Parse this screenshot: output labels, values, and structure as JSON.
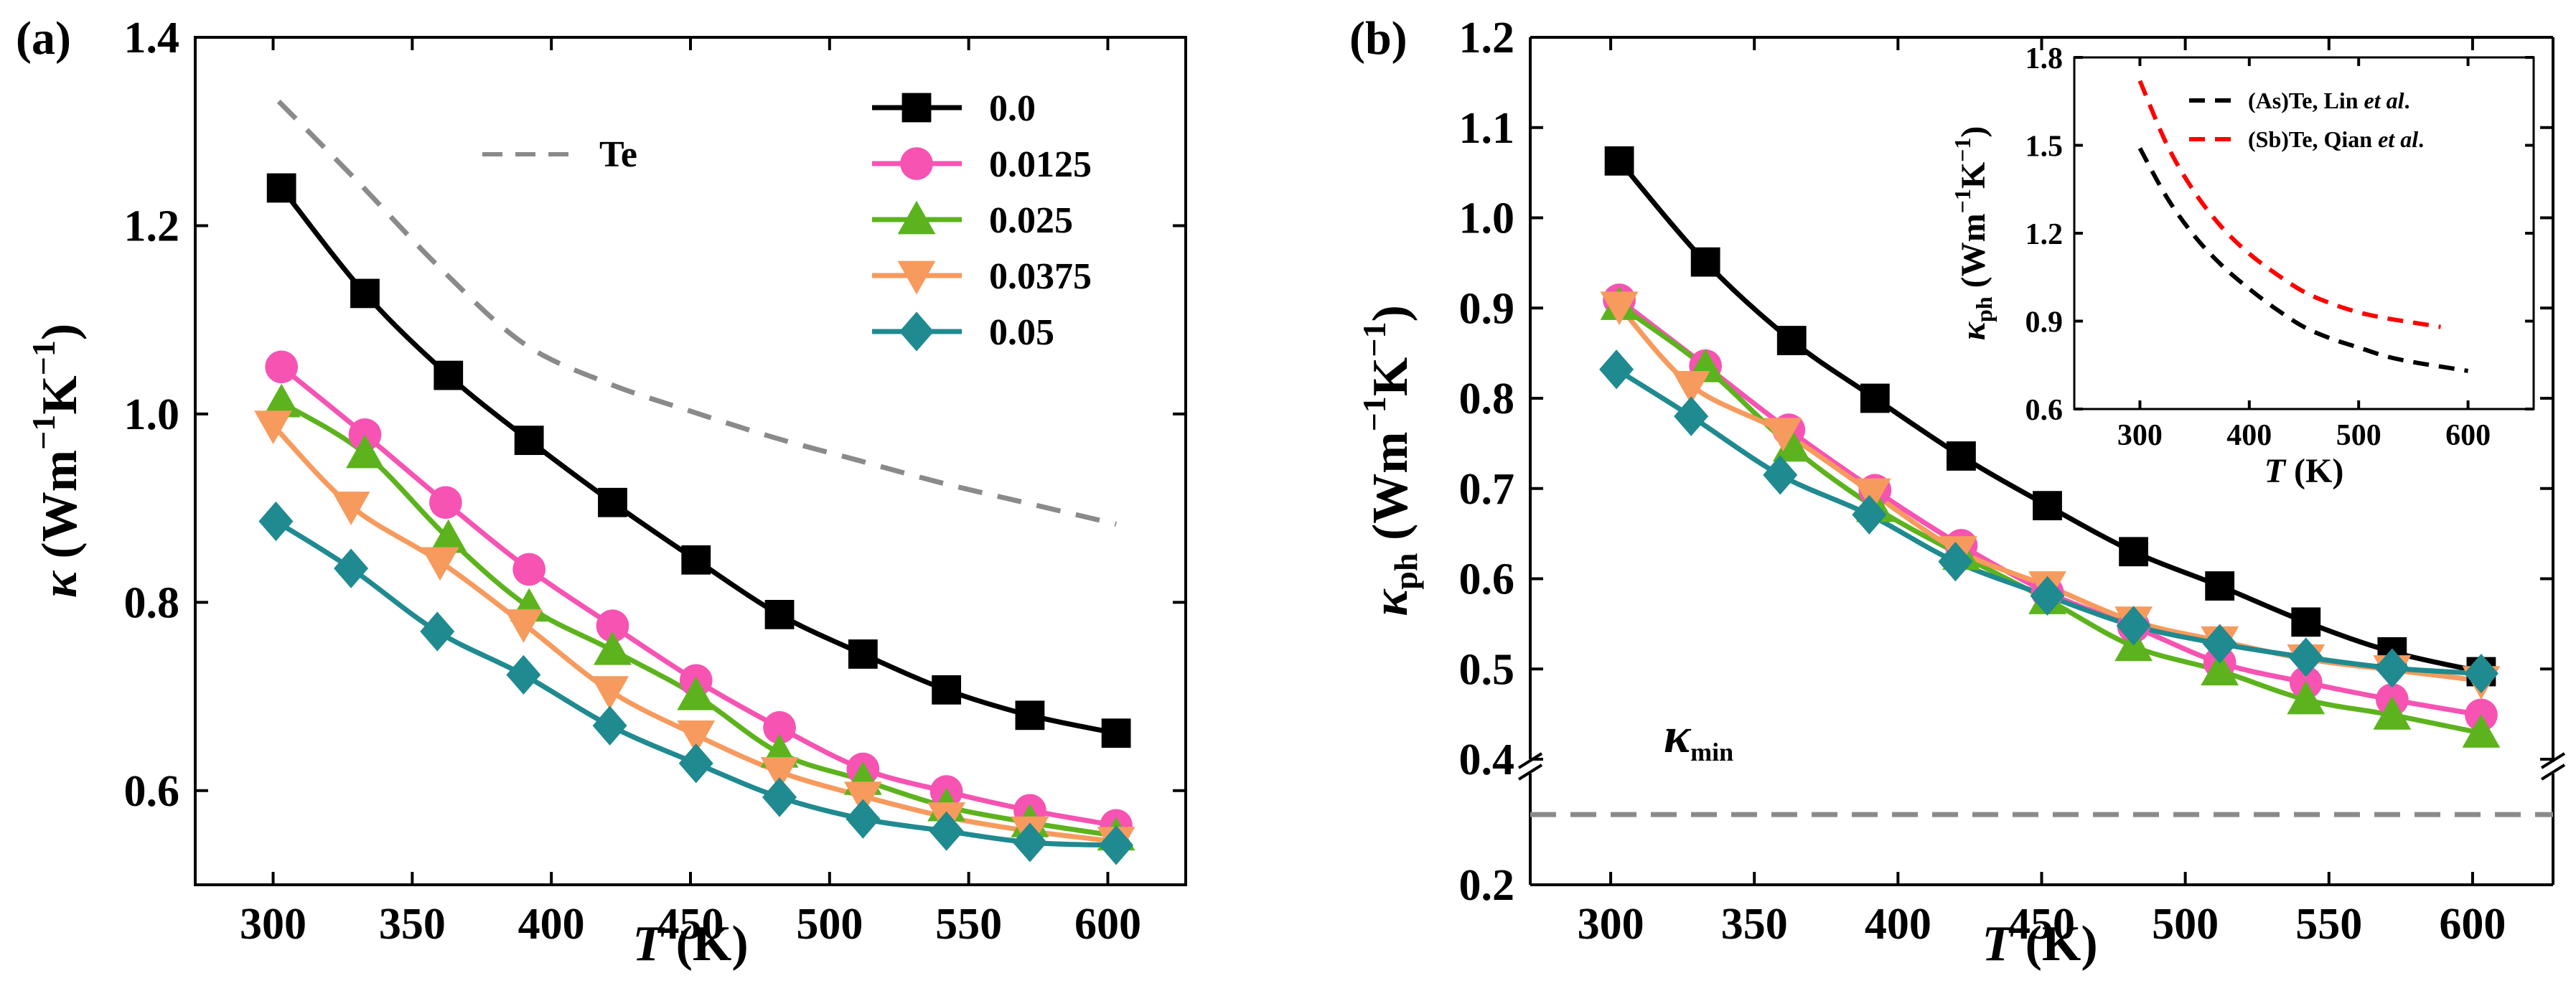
{
  "colors": {
    "s00": "#000000",
    "s0125": "#f653b3",
    "s025": "#5cb31d",
    "s0375": "#f79a5d",
    "s05": "#1f8a90",
    "te": "#8a8a8a",
    "as_te": "#000000",
    "sb_te": "#ff0000",
    "kmin": "#8a8a8a"
  },
  "chart_data": [
    {
      "panel": "(a)",
      "type": "line",
      "xlabel_main": "T",
      "xlabel_unit": " (K)",
      "ylabel_symbol": "κ",
      "ylabel_unit": " (Wm",
      "ylabel_exp1": "−1",
      "ylabel_mid": "K",
      "ylabel_exp2": "−1",
      "ylabel_close": ")",
      "xlim": [
        272,
        628
      ],
      "ylim": [
        0.5,
        1.4
      ],
      "xticks": [
        300,
        350,
        400,
        450,
        500,
        550,
        600
      ],
      "yticks": [
        0.6,
        0.8,
        1.0,
        1.2,
        1.4
      ],
      "ytick_labels": [
        "0.6",
        "0.8",
        "1.0",
        "1.2",
        "1.4"
      ],
      "legend_position": "top-right",
      "series": [
        {
          "name": "0.0",
          "marker": "square",
          "color_key": "s00",
          "x": [
            303,
            333,
            363,
            392,
            422,
            452,
            482,
            512,
            542,
            572,
            603
          ],
          "y": [
            1.24,
            1.128,
            1.041,
            0.972,
            0.906,
            0.845,
            0.787,
            0.745,
            0.707,
            0.68,
            0.661
          ]
        },
        {
          "name": "0.0125",
          "marker": "circle",
          "color_key": "s0125",
          "x": [
            303,
            333,
            362,
            392,
            422,
            452,
            482,
            512,
            542,
            572,
            603
          ],
          "y": [
            1.05,
            0.978,
            0.906,
            0.835,
            0.775,
            0.717,
            0.667,
            0.623,
            0.599,
            0.579,
            0.563
          ]
        },
        {
          "name": "0.025",
          "marker": "triangle-up",
          "color_key": "s025",
          "x": [
            303,
            333,
            363,
            392,
            422,
            452,
            482,
            512,
            542,
            572,
            603
          ],
          "y": [
            1.012,
            0.958,
            0.868,
            0.795,
            0.749,
            0.701,
            0.64,
            0.611,
            0.583,
            0.566,
            0.552
          ]
        },
        {
          "name": "0.0375",
          "marker": "triangle-down",
          "color_key": "s0375",
          "x": [
            300,
            328,
            360,
            390,
            421,
            452,
            482,
            512,
            542,
            572,
            603
          ],
          "y": [
            0.988,
            0.902,
            0.843,
            0.777,
            0.706,
            0.659,
            0.62,
            0.594,
            0.572,
            0.557,
            0.546
          ]
        },
        {
          "name": "0.05",
          "marker": "diamond",
          "color_key": "s05",
          "x": [
            301,
            328,
            359,
            390,
            421,
            452,
            482,
            512,
            542,
            572,
            603
          ],
          "y": [
            0.886,
            0.836,
            0.769,
            0.723,
            0.669,
            0.629,
            0.593,
            0.57,
            0.557,
            0.545,
            0.542
          ]
        }
      ],
      "reference": {
        "name": "Te",
        "style": "dashed",
        "color_key": "te",
        "x": [
          302,
          330,
          360,
          390,
          420,
          450,
          480,
          510,
          540,
          570,
          603
        ],
        "y": [
          1.332,
          1.248,
          1.155,
          1.075,
          1.033,
          1.003,
          0.975,
          0.951,
          0.927,
          0.906,
          0.883
        ]
      }
    },
    {
      "panel": "(b)",
      "type": "line",
      "xlabel_main": "T",
      "xlabel_unit": " (K)",
      "ylabel_symbol": "κ",
      "ylabel_sub": "ph",
      "ylabel_unit": " (Wm",
      "ylabel_exp1": "−1",
      "ylabel_mid": "K",
      "ylabel_exp2": "−1",
      "ylabel_close": ")",
      "xlim": [
        272,
        628
      ],
      "ylim_upper": [
        0.38,
        1.2
      ],
      "ylim_lower": [
        0.2,
        0.4
      ],
      "axis_break": true,
      "xticks": [
        300,
        350,
        400,
        450,
        500,
        550,
        600
      ],
      "yticks": [
        0.2,
        0.4,
        0.5,
        0.6,
        0.7,
        0.8,
        0.9,
        1.0,
        1.1,
        1.2
      ],
      "ytick_labels": [
        "0.2",
        "0.4",
        "0.5",
        "0.6",
        "0.7",
        "0.8",
        "0.9",
        "1.0",
        "1.1",
        "1.2"
      ],
      "kmin_label_symbol": "κ",
      "kmin_label_sub": "min",
      "kmin_value": 0.335,
      "series": [
        {
          "name": "0.0",
          "marker": "square",
          "color_key": "s00",
          "x": [
            303,
            333,
            363,
            392,
            422,
            452,
            482,
            512,
            542,
            572,
            603
          ],
          "y": [
            1.063,
            0.951,
            0.864,
            0.8,
            0.736,
            0.681,
            0.63,
            0.592,
            0.552,
            0.519,
            0.497
          ]
        },
        {
          "name": "0.0125",
          "marker": "circle",
          "color_key": "s0125",
          "x": [
            303,
            333,
            362,
            392,
            422,
            452,
            482,
            512,
            542,
            572,
            603
          ],
          "y": [
            0.909,
            0.836,
            0.765,
            0.698,
            0.637,
            0.585,
            0.547,
            0.507,
            0.485,
            0.466,
            0.449
          ]
        },
        {
          "name": "0.025",
          "marker": "triangle-up",
          "color_key": "s025",
          "x": [
            303,
            333,
            363,
            392,
            422,
            452,
            482,
            512,
            542,
            572,
            603
          ],
          "y": [
            0.903,
            0.834,
            0.746,
            0.679,
            0.626,
            0.577,
            0.525,
            0.498,
            0.466,
            0.449,
            0.429
          ]
        },
        {
          "name": "0.0375",
          "marker": "triangle-down",
          "color_key": "s0375",
          "x": [
            303,
            328,
            360,
            391,
            421,
            452,
            482,
            512,
            542,
            572,
            603
          ],
          "y": [
            0.902,
            0.814,
            0.762,
            0.695,
            0.631,
            0.592,
            0.553,
            0.531,
            0.511,
            0.499,
            0.487
          ]
        },
        {
          "name": "0.05",
          "marker": "diamond",
          "color_key": "s05",
          "x": [
            302,
            328,
            359,
            390,
            420,
            452,
            482,
            512,
            542,
            572,
            603
          ],
          "y": [
            0.832,
            0.78,
            0.715,
            0.671,
            0.619,
            0.581,
            0.548,
            0.528,
            0.513,
            0.501,
            0.495
          ]
        }
      ]
    },
    {
      "panel": "(b) inset",
      "type": "line",
      "xlabel_main": "T",
      "xlabel_unit": " (K)",
      "ylabel_symbol": "κ",
      "ylabel_sub": "ph",
      "ylabel_unit": " (Wm",
      "ylabel_exp1": "−1",
      "ylabel_mid": "K",
      "ylabel_exp2": "−1",
      "ylabel_close": ")",
      "xlim": [
        240,
        660
      ],
      "ylim": [
        0.6,
        1.8
      ],
      "xticks": [
        300,
        400,
        500,
        600
      ],
      "yticks": [
        0.6,
        0.9,
        1.2,
        1.5,
        1.8
      ],
      "ytick_labels": [
        "0.6",
        "0.9",
        "1.2",
        "1.5",
        "1.8"
      ],
      "series": [
        {
          "name_pre": "(As)Te, Lin ",
          "name_em": "et al",
          "name_post": ".",
          "style": "dashed",
          "color_key": "as_te",
          "x": [
            300,
            325,
            350,
            375,
            400,
            425,
            450,
            475,
            500,
            525,
            550,
            575,
            600
          ],
          "y": [
            1.49,
            1.32,
            1.19,
            1.09,
            1.01,
            0.94,
            0.88,
            0.84,
            0.81,
            0.78,
            0.76,
            0.745,
            0.73
          ]
        },
        {
          "name_pre": "(Sb)Te, Qian ",
          "name_em": "et al",
          "name_post": ".",
          "style": "dashed",
          "color_key": "sb_te",
          "x": [
            300,
            325,
            350,
            375,
            400,
            425,
            450,
            475,
            500,
            525,
            550,
            575
          ],
          "y": [
            1.72,
            1.5,
            1.34,
            1.22,
            1.13,
            1.06,
            1.0,
            0.96,
            0.93,
            0.91,
            0.895,
            0.88
          ]
        }
      ]
    }
  ]
}
